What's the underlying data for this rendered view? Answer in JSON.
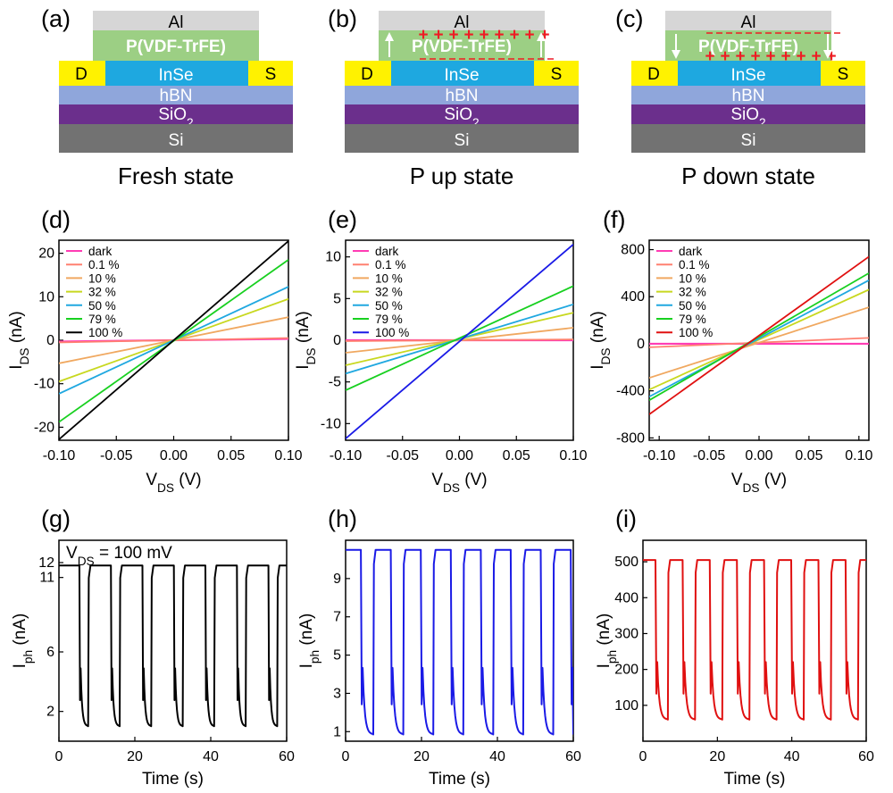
{
  "panel_letters": [
    "(a)",
    "(b)",
    "(c)",
    "(d)",
    "(e)",
    "(f)",
    "(g)",
    "(h)",
    "(i)"
  ],
  "device_stack": {
    "layers": {
      "top_electrode": "Al",
      "ferroelectric": "P(VDF-TrFE)",
      "drain": "D",
      "channel": "InSe",
      "source": "S",
      "dielectric": "hBN",
      "oxide": "SiO",
      "oxide_subscript": "2",
      "substrate": "Si"
    },
    "states": [
      "Fresh state",
      "P up state",
      "P down state"
    ],
    "colors": {
      "al": "#d6d6d6",
      "pvdf": "#9ccf84",
      "electrode": "#fff200",
      "insE": "#1ea8e0",
      "hbn": "#8fa6db",
      "sio2": "#6b2f8c",
      "si": "#727272",
      "charge": "#ee1c24"
    }
  },
  "legend_entries": {
    "d": [
      "dark",
      "0.1 %",
      "10 %",
      "32 %",
      "50 %",
      "79 %",
      "100 %"
    ],
    "e": [
      "dark",
      "0.1 %",
      "10 %",
      "32 %",
      "50 %",
      "79 %",
      "100 %"
    ],
    "f": [
      "dark",
      "0.1 %",
      "10 %",
      "32 %",
      "50 %",
      "79 %",
      "100 %"
    ]
  },
  "series_colors": [
    "#ff3cb4",
    "#ff8070",
    "#f0a860",
    "#c8d820",
    "#20a8e0",
    "#18d020"
  ],
  "top_colors": {
    "d": "#000000",
    "e": "#1a1ae6",
    "f": "#e01010"
  },
  "iv_axis": {
    "x_label": "V",
    "x_sub": "DS",
    "x_unit": " (V)",
    "y_label": "I",
    "y_sub": "DS"
  },
  "time_axis": {
    "x_label": "Time (s)",
    "y_label": "I",
    "y_sub": "ph",
    "y_unit": " (nA)"
  },
  "annotation_g": {
    "pre": "V",
    "sub": "DS",
    "post": " = 100 mV"
  },
  "chart_data": [
    {
      "panel": "d",
      "type": "line",
      "xlabel": "VDS (V)",
      "ylabel": "IDS (nA)",
      "xlim": [
        -0.1,
        0.1
      ],
      "ylim": [
        -23,
        23
      ],
      "xticks": [
        "-0.10",
        "-0.05",
        "0.00",
        "0.05",
        "0.10"
      ],
      "yticks": [
        "-20",
        "-10",
        "0",
        "10",
        "20"
      ],
      "legend": "top-left",
      "series": [
        {
          "name": "dark",
          "x": [
            -0.1,
            0.1
          ],
          "y": [
            -0.3,
            0.3
          ]
        },
        {
          "name": "0.1 %",
          "x": [
            -0.1,
            0.1
          ],
          "y": [
            -0.5,
            0.5
          ]
        },
        {
          "name": "10 %",
          "x": [
            -0.1,
            0.1
          ],
          "y": [
            -5.3,
            5.3
          ]
        },
        {
          "name": "32 %",
          "x": [
            -0.1,
            0.1
          ],
          "y": [
            -9.5,
            9.5
          ]
        },
        {
          "name": "50 %",
          "x": [
            -0.1,
            0.1
          ],
          "y": [
            -12.3,
            12.3
          ]
        },
        {
          "name": "79 %",
          "x": [
            -0.1,
            0.1
          ],
          "y": [
            -18.8,
            18.5
          ]
        },
        {
          "name": "100 %",
          "x": [
            -0.1,
            0.1
          ],
          "y": [
            -22.8,
            22.8
          ]
        }
      ]
    },
    {
      "panel": "e",
      "type": "line",
      "xlabel": "VDS (V)",
      "ylabel": "IDS (nA)",
      "xlim": [
        -0.1,
        0.1
      ],
      "ylim": [
        -12,
        12
      ],
      "xticks": [
        "-0.10",
        "-0.05",
        "0.00",
        "0.05",
        "0.10"
      ],
      "yticks": [
        "-10",
        "-5",
        "0",
        "5",
        "10"
      ],
      "legend": "top-left",
      "series": [
        {
          "name": "dark",
          "x": [
            -0.1,
            0.1
          ],
          "y": [
            0,
            0
          ]
        },
        {
          "name": "0.1 %",
          "x": [
            -0.1,
            0.1
          ],
          "y": [
            -0.1,
            0.1
          ]
        },
        {
          "name": "10 %",
          "x": [
            -0.1,
            0.1
          ],
          "y": [
            -1.5,
            1.5
          ]
        },
        {
          "name": "32 %",
          "x": [
            -0.1,
            0.1
          ],
          "y": [
            -3.0,
            3.3
          ]
        },
        {
          "name": "50 %",
          "x": [
            -0.1,
            0.1
          ],
          "y": [
            -4.0,
            4.3
          ]
        },
        {
          "name": "79 %",
          "x": [
            -0.1,
            0.1
          ],
          "y": [
            -6.0,
            6.5
          ]
        },
        {
          "name": "100 %",
          "x": [
            -0.1,
            0.1
          ],
          "y": [
            -11.8,
            11.5
          ]
        }
      ]
    },
    {
      "panel": "f",
      "type": "line",
      "xlabel": "VDS (V)",
      "ylabel": "IDS (nA)",
      "xlim": [
        -0.11,
        0.11
      ],
      "ylim": [
        -820,
        880
      ],
      "xticks": [
        "-0.10",
        "-0.05",
        "0.00",
        "0.05",
        "0.10"
      ],
      "yticks": [
        "-800",
        "-400",
        "0",
        "400",
        "800"
      ],
      "legend": "top-left",
      "series": [
        {
          "name": "dark",
          "x": [
            -0.11,
            0.11
          ],
          "y": [
            0,
            0
          ]
        },
        {
          "name": "0.1 %",
          "x": [
            -0.11,
            0.11
          ],
          "y": [
            -30,
            50
          ]
        },
        {
          "name": "10 %",
          "x": [
            -0.11,
            0.11
          ],
          "y": [
            -290,
            310
          ]
        },
        {
          "name": "32 %",
          "x": [
            -0.11,
            0.11
          ],
          "y": [
            -390,
            460
          ]
        },
        {
          "name": "50 %",
          "x": [
            -0.11,
            0.11
          ],
          "y": [
            -450,
            540
          ]
        },
        {
          "name": "79 %",
          "x": [
            -0.11,
            0.11
          ],
          "y": [
            -480,
            600
          ]
        },
        {
          "name": "100 %",
          "x": [
            -0.11,
            0.11
          ],
          "y": [
            -600,
            740
          ]
        }
      ]
    },
    {
      "panel": "g",
      "type": "line",
      "xlabel": "Time (s)",
      "ylabel": "Iph (nA)",
      "xlim": [
        0,
        60
      ],
      "ylim": [
        0,
        13.5
      ],
      "xticks": [
        "0",
        "20",
        "40",
        "60"
      ],
      "yticks": [
        "2",
        "6",
        "11",
        "12"
      ],
      "ytick_values": [
        2,
        6,
        11,
        12
      ],
      "series": [
        {
          "period": 7.7,
          "on_first": 0,
          "off_fraction": 0.3,
          "high": 11.8,
          "low": 1.0,
          "cycles": 8
        }
      ]
    },
    {
      "panel": "h",
      "type": "line",
      "xlabel": "Time (s)",
      "ylabel": "Iph (nA)",
      "xlim": [
        0,
        60
      ],
      "ylim": [
        0.5,
        11
      ],
      "xticks": [
        "0",
        "20",
        "40",
        "60"
      ],
      "yticks": [
        "1",
        "3",
        "5",
        "7",
        "9"
      ],
      "ytick_values": [
        1,
        3,
        5,
        7,
        9
      ],
      "series": [
        {
          "period": 7.3,
          "on_first": 0,
          "off_fraction": 0.45,
          "high": 10.5,
          "low": 0.85,
          "cycles": 9
        }
      ]
    },
    {
      "panel": "i",
      "type": "line",
      "xlabel": "Time (s)",
      "ylabel": "Iph (nA)",
      "xlim": [
        0,
        60
      ],
      "ylim": [
        0,
        560
      ],
      "xticks": [
        "0",
        "20",
        "40",
        "60"
      ],
      "yticks": [
        "100",
        "200",
        "300",
        "400",
        "500"
      ],
      "ytick_values": [
        100,
        200,
        300,
        400,
        500
      ],
      "series": [
        {
          "period": 6.7,
          "on_first": 0,
          "off_fraction": 0.5,
          "high": 505,
          "low": 60,
          "cycles": 9
        }
      ]
    }
  ]
}
